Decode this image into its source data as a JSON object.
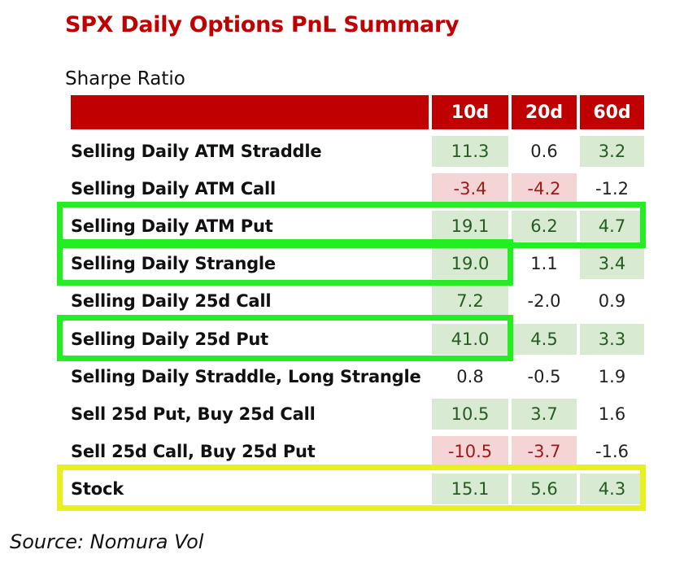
{
  "chart_data": {
    "type": "table",
    "title": "SPX Daily Options PnL Summary",
    "subtitle": "Sharpe Ratio",
    "columns": [
      "10d",
      "20d",
      "60d"
    ],
    "rows": [
      {
        "label": "Selling Daily ATM Straddle",
        "values": [
          "11.3",
          "0.6",
          "3.2"
        ],
        "styles": [
          "pos",
          "neu",
          "pos"
        ]
      },
      {
        "label": "Selling Daily ATM Call",
        "values": [
          "-3.4",
          "-4.2",
          "-1.2"
        ],
        "styles": [
          "neg",
          "neg",
          "neu"
        ]
      },
      {
        "label": "Selling Daily ATM Put",
        "values": [
          "19.1",
          "6.2",
          "4.7"
        ],
        "styles": [
          "pos",
          "pos",
          "pos"
        ]
      },
      {
        "label": "Selling Daily Strangle",
        "values": [
          "19.0",
          "1.1",
          "3.4"
        ],
        "styles": [
          "pos",
          "neu",
          "pos"
        ]
      },
      {
        "label": "Selling Daily 25d Call",
        "values": [
          "7.2",
          "-2.0",
          "0.9"
        ],
        "styles": [
          "pos",
          "neu",
          "neu"
        ]
      },
      {
        "label": "Selling Daily 25d Put",
        "values": [
          "41.0",
          "4.5",
          "3.3"
        ],
        "styles": [
          "pos",
          "pos",
          "pos"
        ]
      },
      {
        "label": "Selling Daily Straddle, Long Strangle",
        "values": [
          "0.8",
          "-0.5",
          "1.9"
        ],
        "styles": [
          "neu",
          "neu",
          "neu"
        ]
      },
      {
        "label": "Sell 25d Put, Buy 25d Call",
        "values": [
          "10.5",
          "3.7",
          "1.6"
        ],
        "styles": [
          "pos",
          "pos",
          "neu"
        ]
      },
      {
        "label": "Sell 25d Call, Buy 25d Put",
        "values": [
          "-10.5",
          "-3.7",
          "-1.6"
        ],
        "styles": [
          "neg",
          "neg",
          "neu"
        ]
      },
      {
        "label": "Stock",
        "values": [
          "15.1",
          "5.6",
          "4.3"
        ],
        "styles": [
          "pos",
          "pos",
          "pos"
        ]
      }
    ],
    "highlights": [
      {
        "row": 2,
        "color": "green",
        "span": "full-row"
      },
      {
        "row": 3,
        "color": "green",
        "span": "label-and-10d"
      },
      {
        "row": 5,
        "color": "green",
        "span": "label-and-10d"
      },
      {
        "row": 9,
        "color": "yellow",
        "span": "full-row"
      }
    ],
    "colors": {
      "header": "#c00000",
      "positive_fill": "#d9ead3",
      "negative_fill": "#f4d4d4",
      "green_box": "#22ee22",
      "yellow_box": "#e8f020"
    }
  },
  "source": "Source: Nomura Vol"
}
